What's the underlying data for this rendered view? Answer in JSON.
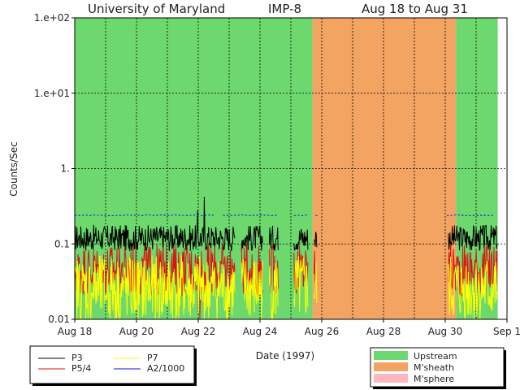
{
  "header": {
    "institution": "University of Maryland",
    "spacecraft": "IMP-8",
    "date_range": "Aug 18 to Aug 31"
  },
  "chart_data": {
    "type": "line",
    "title": "University of Maryland  IMP-8  Aug 18 to Aug 31",
    "xlabel": "Date (1997)",
    "ylabel": "Counts/Sec",
    "y_scale": "log",
    "xlim_days": [
      0,
      14
    ],
    "ylim": [
      0.01,
      100
    ],
    "y_ticks": [
      {
        "value": 100,
        "label": "1.e+02"
      },
      {
        "value": 10,
        "label": "1.e+01"
      },
      {
        "value": 1,
        "label": "1."
      },
      {
        "value": 0.1,
        "label": "0.1"
      },
      {
        "value": 0.01,
        "label": "0.01"
      }
    ],
    "x_ticks": [
      {
        "day": 0,
        "label": "Aug 18"
      },
      {
        "day": 2,
        "label": "Aug 20"
      },
      {
        "day": 4,
        "label": "Aug 22"
      },
      {
        "day": 6,
        "label": "Aug 24"
      },
      {
        "day": 8,
        "label": "Aug 26"
      },
      {
        "day": 10,
        "label": "Aug 28"
      },
      {
        "day": 12,
        "label": "Aug 30"
      },
      {
        "day": 14,
        "label": "Sep 1"
      }
    ],
    "grid": true,
    "regions": [
      {
        "type": "Upstream",
        "start_day": 0.0,
        "end_day": 7.7
      },
      {
        "type": "M'sheath",
        "start_day": 7.7,
        "end_day": 12.35
      },
      {
        "type": "Upstream",
        "start_day": 12.35,
        "end_day": 13.7
      }
    ],
    "region_legend": [
      {
        "name": "Upstream",
        "color": "#6dd86d"
      },
      {
        "name": "M'sheath",
        "color": "#f3a362"
      },
      {
        "name": "M'sphere",
        "color": "#ffb6c1"
      }
    ],
    "series": [
      {
        "name": "P3",
        "color": "#000000",
        "typical": 0.12,
        "segments": [
          [
            0.0,
            5.2
          ],
          [
            5.4,
            6.1
          ],
          [
            6.3,
            6.6
          ],
          [
            7.1,
            7.55
          ],
          [
            7.75,
            7.85
          ],
          [
            12.1,
            13.7
          ]
        ],
        "spikes": [
          {
            "day": 4.2,
            "value": 0.42
          },
          {
            "day": 3.98,
            "value": 0.28
          }
        ]
      },
      {
        "name": "P5/4",
        "color": "#e01010",
        "typical": 0.045,
        "segments": [
          [
            0.0,
            5.2
          ],
          [
            5.4,
            6.1
          ],
          [
            6.3,
            6.6
          ],
          [
            7.1,
            7.55
          ],
          [
            7.75,
            7.85
          ],
          [
            12.1,
            13.7
          ]
        ],
        "spikes": [
          {
            "day": 4.05,
            "value": 0.01
          }
        ]
      },
      {
        "name": "P7",
        "color": "#ffff00",
        "typical": 0.025,
        "segments": [
          [
            0.0,
            5.2
          ],
          [
            5.4,
            6.1
          ],
          [
            6.3,
            6.6
          ],
          [
            7.1,
            7.55
          ],
          [
            7.75,
            7.85
          ],
          [
            12.1,
            13.7
          ]
        ],
        "spikes": []
      },
      {
        "name": "A2/1000",
        "color": "#1010e0",
        "typical": 0.24,
        "segments": [
          [
            0.0,
            4.6
          ],
          [
            4.8,
            6.6
          ],
          [
            7.1,
            7.55
          ],
          [
            7.8,
            7.9
          ],
          [
            12.05,
            13.6
          ]
        ],
        "spikes": []
      }
    ]
  },
  "legend": {
    "series_labels": [
      "P3",
      "P7",
      "P5/4",
      "A2/1000"
    ],
    "region_labels": [
      "Upstream",
      "M'sheath",
      "M'sphere"
    ]
  }
}
